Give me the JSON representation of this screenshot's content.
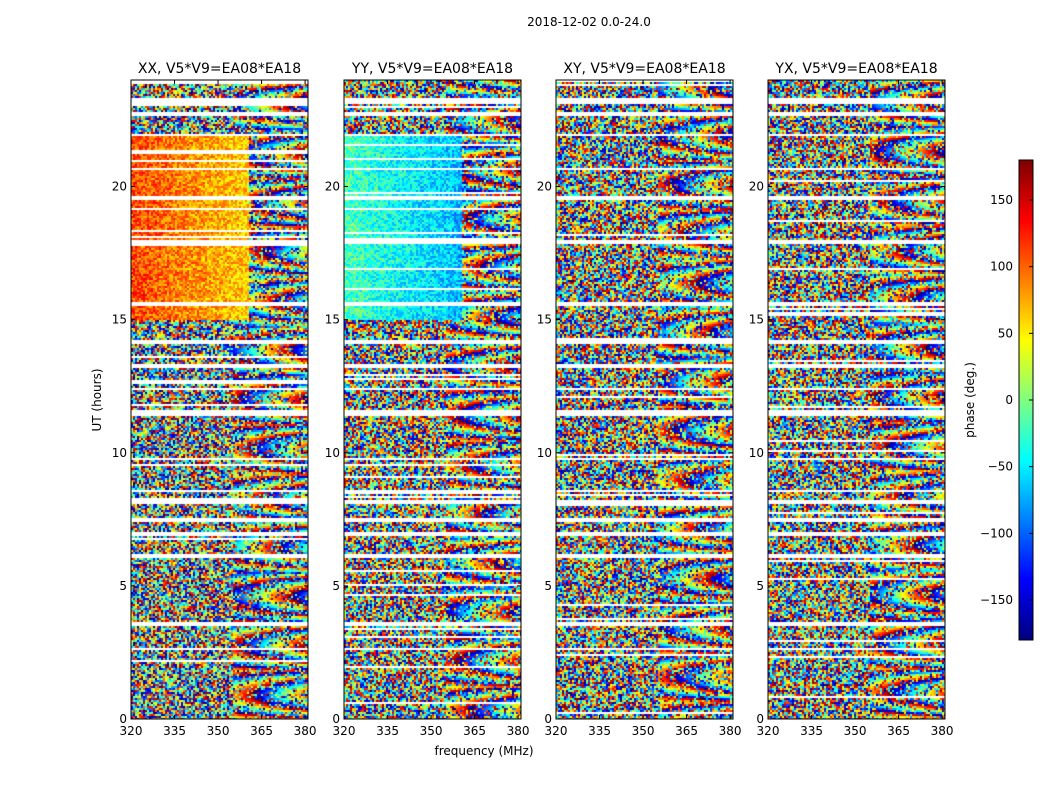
{
  "chart_data": {
    "type": "heatmap",
    "suptitle": "2018-12-02 0.0-24.0",
    "xlabel": "frequency (MHz)",
    "ylabel": "UT (hours)",
    "xlim": [
      320,
      381
    ],
    "ylim": [
      0,
      24
    ],
    "xticks": [
      "320",
      "335",
      "350",
      "365",
      "380"
    ],
    "yticks": [
      "0",
      "5",
      "10",
      "15",
      "20"
    ],
    "panels": [
      {
        "title": "XX, V5*V9=EA08*EA18",
        "bias_phase": 110,
        "bias_freq_max": 360
      },
      {
        "title": "YY, V5*V9=EA08*EA18",
        "bias_phase": -20,
        "bias_freq_max": 360
      },
      {
        "title": "XY, V5*V9=EA08*EA18",
        "bias_phase": null,
        "bias_freq_max": null
      },
      {
        "title": "YX, V5*V9=EA08*EA18",
        "bias_phase": null,
        "bias_freq_max": null
      }
    ],
    "colorbar": {
      "label": "phase (deg.)",
      "range": [
        -180,
        180
      ],
      "ticks": [
        "150",
        "100",
        "50",
        "0",
        "−50",
        "−100",
        "−150"
      ],
      "tick_values": [
        150,
        100,
        50,
        0,
        -50,
        -100,
        -150
      ],
      "colormap": "jet"
    },
    "flagged_ut_hours": [
      [
        23.15,
        23.35
      ],
      [
        22.7,
        22.8
      ],
      [
        21.9,
        22.0
      ],
      [
        20.65,
        20.75
      ],
      [
        19.55,
        19.7
      ],
      [
        17.9,
        18.0
      ],
      [
        15.55,
        15.7
      ],
      [
        14.1,
        14.25
      ],
      [
        13.25,
        13.35
      ],
      [
        12.4,
        12.5
      ],
      [
        11.4,
        11.65
      ],
      [
        9.75,
        9.85
      ],
      [
        8.55,
        8.65
      ],
      [
        8.1,
        8.3
      ],
      [
        7.45,
        7.6
      ],
      [
        6.9,
        7.05
      ],
      [
        6.1,
        6.2
      ],
      [
        3.55,
        3.7
      ],
      [
        2.6,
        2.7
      ]
    ]
  }
}
